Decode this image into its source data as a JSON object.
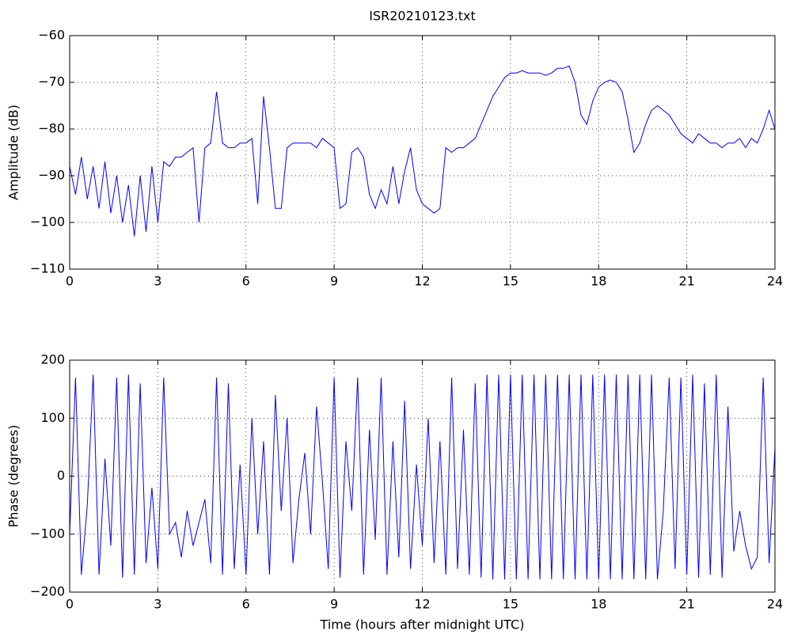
{
  "chart_data": [
    {
      "type": "line",
      "title": "ISR20210123.txt",
      "ylabel": "Amplitude (dB)",
      "color": "#0000ff",
      "grid": true,
      "x": [
        0,
        0.2,
        0.4,
        0.6,
        0.8,
        1,
        1.2,
        1.4,
        1.6,
        1.8,
        2,
        2.2,
        2.4,
        2.6,
        2.8,
        3,
        3.2,
        3.4,
        3.6,
        3.8,
        4,
        4.2,
        4.4,
        4.6,
        4.8,
        5,
        5.2,
        5.4,
        5.6,
        5.8,
        6,
        6.2,
        6.4,
        6.6,
        6.8,
        7,
        7.2,
        7.4,
        7.6,
        7.8,
        8,
        8.2,
        8.4,
        8.6,
        8.8,
        9,
        9.2,
        9.4,
        9.6,
        9.8,
        10,
        10.2,
        10.4,
        10.6,
        10.8,
        11,
        11.2,
        11.4,
        11.6,
        11.8,
        12,
        12.2,
        12.4,
        12.6,
        12.8,
        13,
        13.2,
        13.4,
        13.6,
        13.8,
        14,
        14.2,
        14.4,
        14.6,
        14.8,
        15,
        15.2,
        15.4,
        15.6,
        15.8,
        16,
        16.2,
        16.4,
        16.6,
        16.8,
        17,
        17.2,
        17.4,
        17.6,
        17.8,
        18,
        18.2,
        18.4,
        18.6,
        18.8,
        19,
        19.2,
        19.4,
        19.6,
        19.8,
        20,
        20.2,
        20.4,
        20.6,
        20.8,
        21,
        21.2,
        21.4,
        21.6,
        21.8,
        22,
        22.2,
        22.4,
        22.6,
        22.8,
        23,
        23.2,
        23.4,
        23.6,
        23.8,
        24
      ],
      "values": [
        -88,
        -94,
        -86,
        -95,
        -88,
        -97,
        -87,
        -98,
        -90,
        -100,
        -92,
        -103,
        -90,
        -102,
        -88,
        -100,
        -87,
        -88,
        -86,
        -86,
        -85,
        -84,
        -100,
        -84,
        -83,
        -72,
        -83,
        -84,
        -84,
        -83,
        -83,
        -82,
        -96,
        -73,
        -84,
        -97,
        -97,
        -84,
        -83,
        -83,
        -83,
        -83,
        -84,
        -82,
        -83,
        -84,
        -97,
        -96,
        -85,
        -84,
        -86,
        -94,
        -97,
        -93,
        -96,
        -88,
        -96,
        -89,
        -84,
        -93,
        -96,
        -97,
        -98,
        -97,
        -84,
        -85,
        -84,
        -84,
        -83,
        -82,
        -79,
        -76,
        -73,
        -71,
        -69,
        -68,
        -68,
        -67.5,
        -68,
        -68,
        -68,
        -68.5,
        -68,
        -67,
        -67,
        -66.5,
        -70,
        -77,
        -79,
        -74,
        -71,
        -70,
        -69.5,
        -70,
        -72,
        -78,
        -85,
        -83,
        -79,
        -76,
        -75,
        -76,
        -77,
        -79,
        -81,
        -82,
        -83,
        -81,
        -82,
        -83,
        -83,
        -84,
        -83,
        -83,
        -82,
        -84,
        -82,
        -83,
        -80,
        -76,
        -80
      ],
      "xlim": [
        0,
        24
      ],
      "xticks": [
        0,
        3,
        6,
        9,
        12,
        15,
        18,
        21,
        24
      ],
      "ylim": [
        -110,
        -60
      ],
      "yticks": [
        {
          "value": -110,
          "label": "−110"
        },
        {
          "value": -100,
          "label": "−100"
        },
        {
          "value": -90,
          "label": "−90"
        },
        {
          "value": -80,
          "label": "−80"
        },
        {
          "value": -70,
          "label": "−70"
        },
        {
          "value": -60,
          "label": "−60"
        }
      ]
    },
    {
      "type": "line",
      "ylabel": "Phase (degrees)",
      "xlabel": "Time (hours after midnight UTC)",
      "color": "#0000ff",
      "grid": true,
      "x": [
        0,
        0.2,
        0.4,
        0.6,
        0.8,
        1,
        1.2,
        1.4,
        1.6,
        1.8,
        2,
        2.2,
        2.4,
        2.6,
        2.8,
        3,
        3.2,
        3.4,
        3.6,
        3.8,
        4,
        4.2,
        4.4,
        4.6,
        4.8,
        5,
        5.2,
        5.4,
        5.6,
        5.8,
        6,
        6.2,
        6.4,
        6.6,
        6.8,
        7,
        7.2,
        7.4,
        7.6,
        7.8,
        8,
        8.2,
        8.4,
        8.6,
        8.8,
        9,
        9.2,
        9.4,
        9.6,
        9.8,
        10,
        10.2,
        10.4,
        10.6,
        10.8,
        11,
        11.2,
        11.4,
        11.6,
        11.8,
        12,
        12.2,
        12.4,
        12.6,
        12.8,
        13,
        13.2,
        13.4,
        13.6,
        13.8,
        14,
        14.2,
        14.4,
        14.6,
        14.8,
        15,
        15.2,
        15.4,
        15.6,
        15.8,
        16,
        16.2,
        16.4,
        16.6,
        16.8,
        17,
        17.2,
        17.4,
        17.6,
        17.8,
        18,
        18.2,
        18.4,
        18.6,
        18.8,
        19,
        19.2,
        19.4,
        19.6,
        19.8,
        20,
        20.2,
        20.4,
        20.6,
        20.8,
        21,
        21.2,
        21.4,
        21.6,
        21.8,
        22,
        22.2,
        22.4,
        22.6,
        22.8,
        23,
        23.2,
        23.4,
        23.6,
        23.8,
        24
      ],
      "values": [
        -100,
        170,
        -170,
        -50,
        175,
        -170,
        30,
        -120,
        170,
        -175,
        175,
        -170,
        160,
        -150,
        -20,
        -160,
        170,
        -100,
        -80,
        -140,
        -60,
        -120,
        -80,
        -40,
        -150,
        170,
        -170,
        160,
        -160,
        20,
        -170,
        100,
        -100,
        60,
        -170,
        140,
        -60,
        100,
        -150,
        -40,
        40,
        -100,
        120,
        -10,
        -160,
        170,
        -175,
        60,
        -60,
        170,
        -170,
        80,
        -110,
        170,
        -170,
        60,
        -140,
        130,
        -160,
        20,
        -120,
        100,
        -150,
        60,
        -170,
        170,
        -160,
        80,
        -170,
        160,
        -175,
        175,
        -178,
        175,
        -178,
        175,
        -178,
        175,
        -178,
        175,
        -178,
        175,
        -178,
        175,
        -178,
        175,
        -178,
        175,
        -178,
        175,
        -178,
        175,
        -178,
        175,
        -178,
        175,
        -178,
        175,
        -178,
        175,
        -178,
        -60,
        170,
        -160,
        170,
        -170,
        175,
        -175,
        160,
        -170,
        175,
        -175,
        120,
        -130,
        -60,
        -120,
        -160,
        -140,
        170,
        -150,
        50
      ],
      "xlim": [
        0,
        24
      ],
      "xticks": [
        0,
        3,
        6,
        9,
        12,
        15,
        18,
        21,
        24
      ],
      "ylim": [
        -200,
        200
      ],
      "yticks": [
        {
          "value": -200,
          "label": "−200"
        },
        {
          "value": -100,
          "label": "−100"
        },
        0,
        100,
        200
      ]
    }
  ]
}
